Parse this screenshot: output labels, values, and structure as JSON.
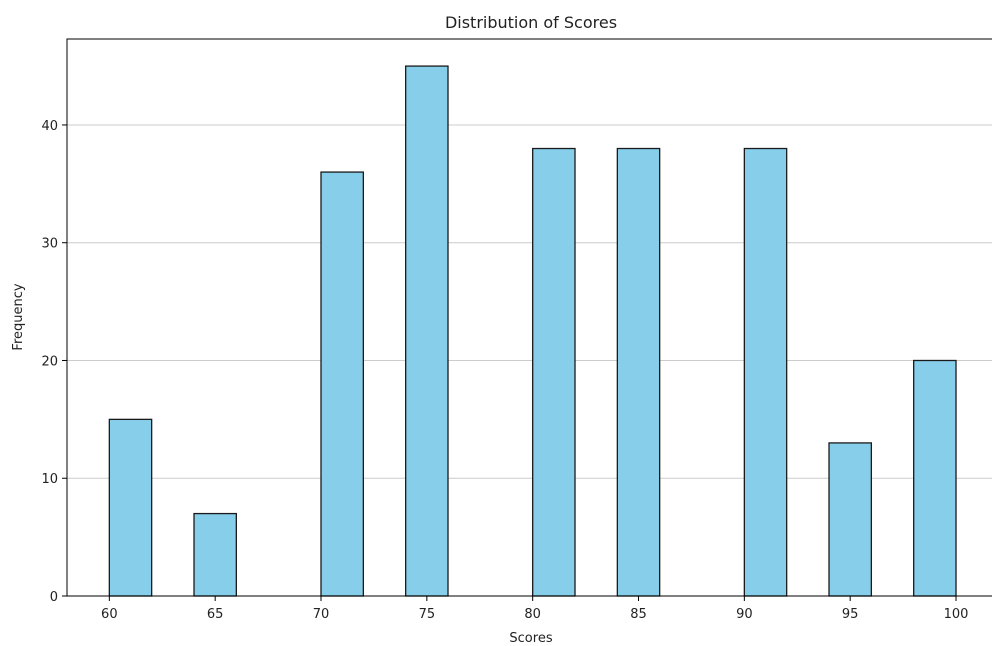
{
  "chart_data": {
    "type": "bar",
    "title": "Distribution of Scores",
    "xlabel": "Scores",
    "ylabel": "Frequency",
    "bars": [
      {
        "x_start": 60.0,
        "x_end": 62.0,
        "value": 15
      },
      {
        "x_start": 64.0,
        "x_end": 66.0,
        "value": 7
      },
      {
        "x_start": 70.0,
        "x_end": 72.0,
        "value": 36
      },
      {
        "x_start": 74.0,
        "x_end": 76.0,
        "value": 45
      },
      {
        "x_start": 80.0,
        "x_end": 82.0,
        "value": 38
      },
      {
        "x_start": 84.0,
        "x_end": 86.0,
        "value": 38
      },
      {
        "x_start": 90.0,
        "x_end": 92.0,
        "value": 38
      },
      {
        "x_start": 94.0,
        "x_end": 96.0,
        "value": 13
      },
      {
        "x_start": 98.0,
        "x_end": 100.0,
        "value": 20
      }
    ],
    "xticks": [
      60,
      65,
      70,
      75,
      80,
      85,
      90,
      95,
      100
    ],
    "yticks": [
      0,
      10,
      20,
      30,
      40
    ],
    "xlim": [
      58.0,
      101.7
    ],
    "ylim": [
      0,
      47.3
    ],
    "grid": {
      "y": true,
      "x": false
    },
    "colors": {
      "bar_fill": "#87ceeb",
      "bar_edge": "#1a1a1a",
      "grid": "#cccccc",
      "axis": "#000000"
    }
  }
}
